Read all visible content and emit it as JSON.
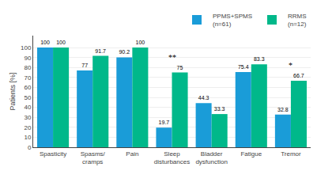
{
  "chart_data": {
    "type": "bar",
    "categories": [
      "Spasticity",
      "Spasms/\ncramps",
      "Pain",
      "Sleep\ndisturbances",
      "Bladder\ndysfunction",
      "Fatigue",
      "Tremor"
    ],
    "series": [
      {
        "name": "PPMS+SPMS\n(n=61)",
        "color": "#1a9cd8",
        "values": [
          100,
          77,
          90.2,
          19.7,
          44.3,
          75.4,
          32.8
        ]
      },
      {
        "name": "RRMS\n(n=12)",
        "color": "#00b88a",
        "values": [
          100,
          91.7,
          100,
          75,
          33.3,
          83.3,
          66.7
        ]
      }
    ],
    "ylabel": "Patients [%]",
    "ylim": [
      0,
      112
    ],
    "yticks": [
      0,
      10,
      20,
      30,
      40,
      50,
      60,
      70,
      80,
      90,
      100
    ],
    "grid": true,
    "legend": "upper right",
    "data_labels": true,
    "annotations": [
      {
        "category": "Sleep\ndisturbances",
        "text": "**"
      },
      {
        "category": "Tremor",
        "text": "*"
      }
    ]
  }
}
